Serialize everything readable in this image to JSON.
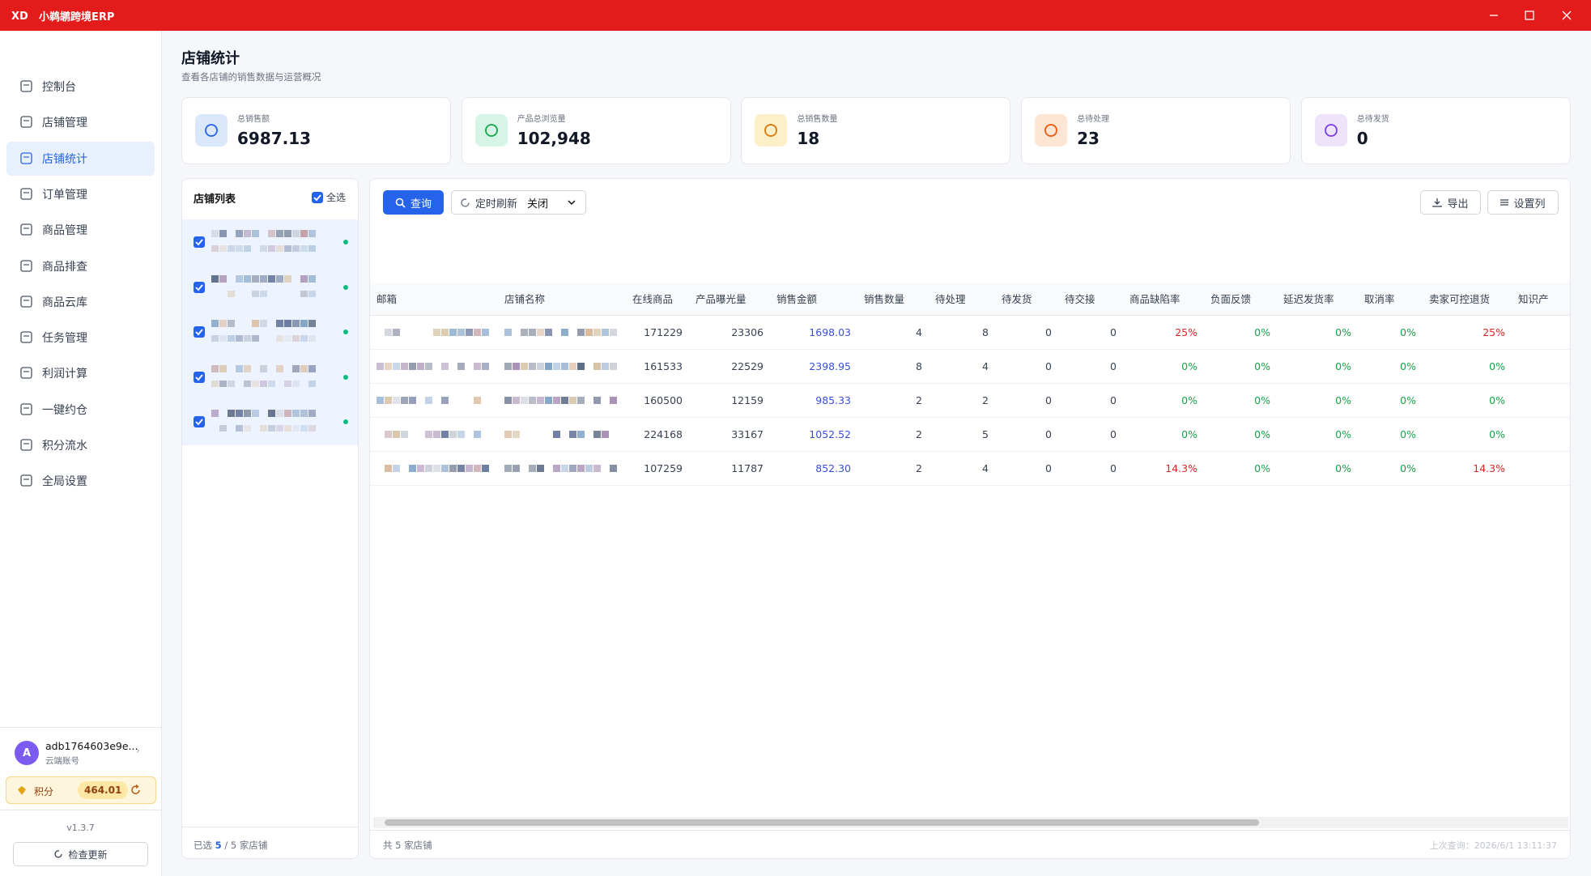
{
  "app": {
    "title": "小鹈鹕跨境ERP"
  },
  "sidebar": {
    "nav": [
      "控制台",
      "店铺管理",
      "店铺统计",
      "订单管理",
      "商品管理",
      "商品排查",
      "商品云库",
      "任务管理",
      "利润计算",
      "一键约仓",
      "积分流水",
      "全局设置"
    ],
    "active": 2,
    "user": {
      "avatar": "A",
      "name": "adb1764603e9e...",
      "role": "云端账号"
    },
    "points": {
      "label": "积分",
      "value": "464.01"
    },
    "version": "v1.3.7",
    "update_button": "检查更新"
  },
  "header": {
    "title": "店铺统计",
    "subtitle": "查看各店铺的销售数据与运营概况"
  },
  "cards": [
    {
      "label": "总销售额",
      "value": "6987.13"
    },
    {
      "label": "产品总浏览量",
      "value": "102,948"
    },
    {
      "label": "总销售数量",
      "value": "18"
    },
    {
      "label": "总待处理",
      "value": "23"
    },
    {
      "label": "总待发货",
      "value": "0"
    }
  ],
  "store_list": {
    "title": "店铺列表",
    "select_all": "全选",
    "footer": {
      "prefix": "已选",
      "selected": "5",
      "suffix": "/ 5 家店铺"
    }
  },
  "toolbar": {
    "query": "查询",
    "auto_refresh": "定时刷新",
    "refresh_state": "关闭",
    "export": "导出",
    "columns": "设置列"
  },
  "table": {
    "columns": [
      "邮箱",
      "店铺名称",
      "在线商品",
      "产品曝光量",
      "销售金额",
      "销售数量",
      "待处理",
      "待发货",
      "待交接",
      "商品缺陷率",
      "负面反馈",
      "延迟发货率",
      "取消率",
      "卖家可控退货",
      "知识产"
    ],
    "rows": [
      [
        "171229",
        "23306",
        "1698.03",
        "4",
        "8",
        "0",
        "0",
        "25%",
        "0%",
        "0%",
        "0%",
        "25%"
      ],
      [
        "161533",
        "22529",
        "2398.95",
        "8",
        "4",
        "0",
        "0",
        "0%",
        "0%",
        "0%",
        "0%",
        "0%"
      ],
      [
        "160500",
        "12159",
        "985.33",
        "2",
        "2",
        "0",
        "0",
        "0%",
        "0%",
        "0%",
        "0%",
        "0%"
      ],
      [
        "224168",
        "33167",
        "1052.52",
        "2",
        "5",
        "0",
        "0",
        "0%",
        "0%",
        "0%",
        "0%",
        "0%"
      ],
      [
        "107259",
        "11787",
        "852.30",
        "2",
        "4",
        "0",
        "0",
        "14.3%",
        "0%",
        "0%",
        "0%",
        "14.3%"
      ]
    ],
    "footer": "共 5 家店铺",
    "last_query": "上次查询：2026/6/1 13:11:37"
  }
}
